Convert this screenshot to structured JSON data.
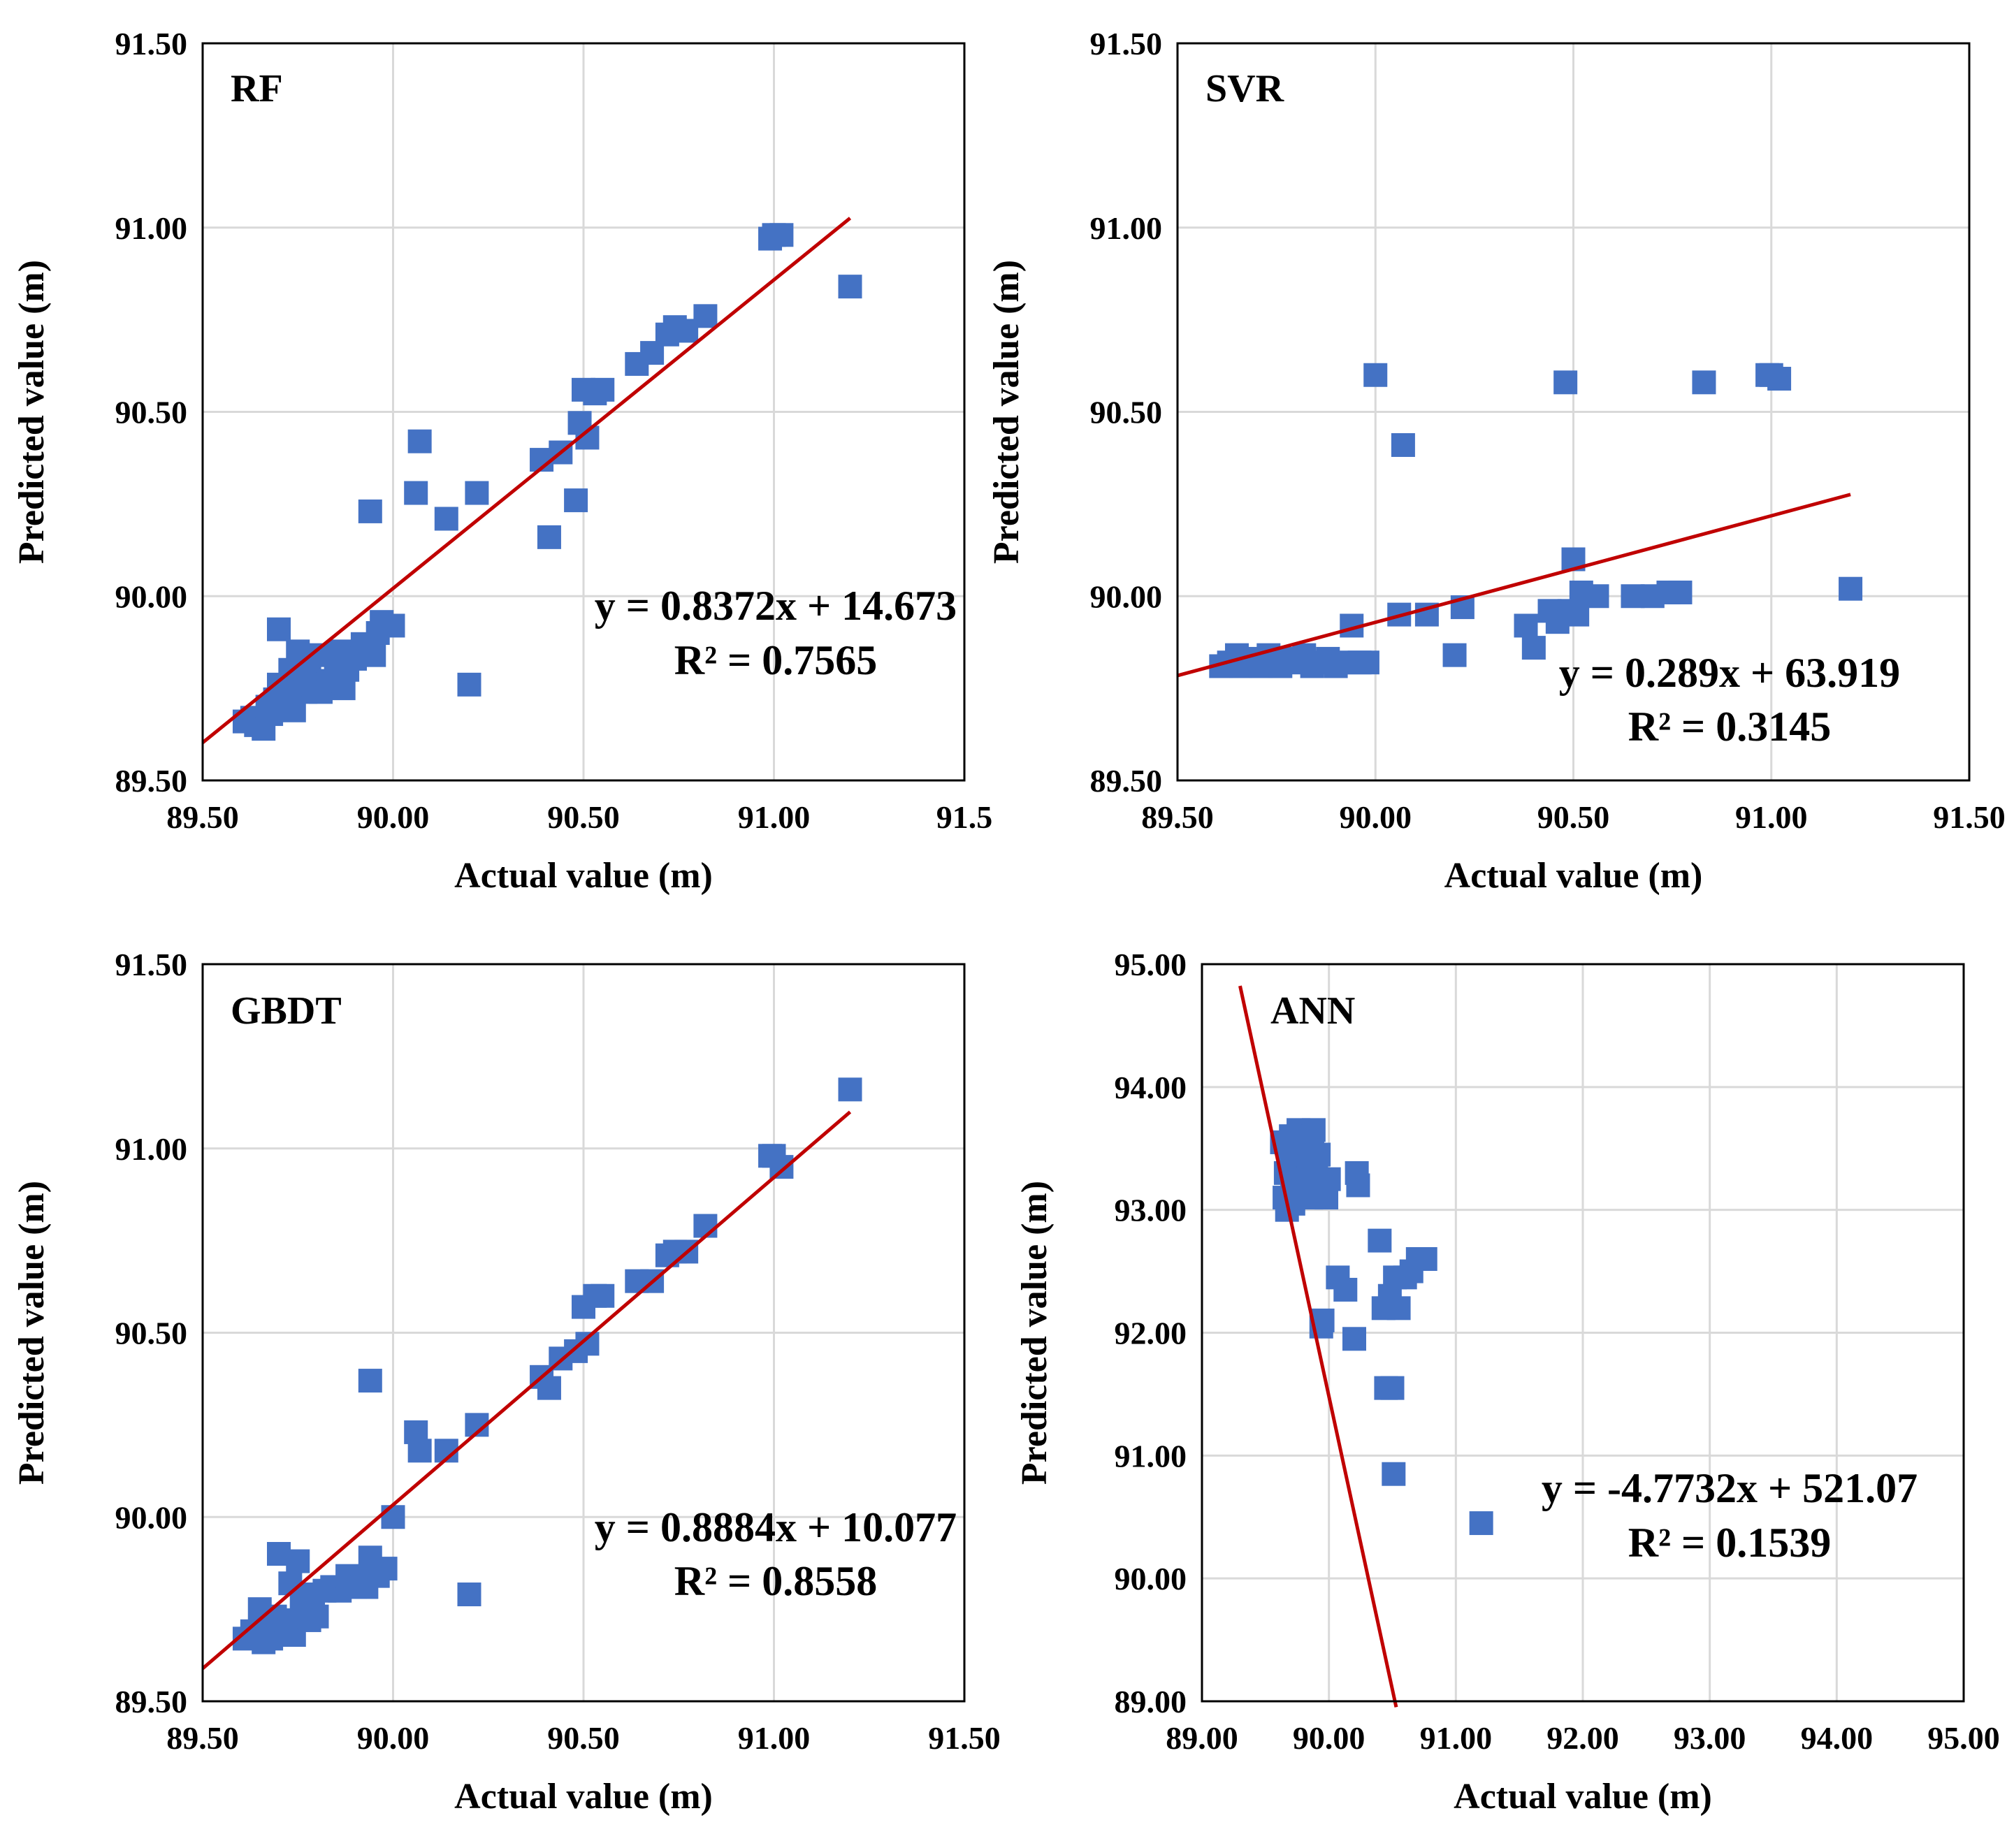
{
  "figure": {
    "colors": {
      "marker": "#4472C4",
      "trendline": "#C00000",
      "grid": "#D9D9D9",
      "frame": "#000000"
    }
  },
  "chart_data": [
    {
      "type": "scatter",
      "label": "RF",
      "xlabel": "Actual value (m)",
      "ylabel": "Predicted value (m)",
      "xlim": [
        89.5,
        91.5
      ],
      "ylim": [
        89.5,
        91.5
      ],
      "xticks": [
        "89.50",
        "90.00",
        "90.50",
        "91.00",
        "91.5"
      ],
      "yticks": [
        "89.50",
        "90.00",
        "90.50",
        "91.00",
        "91.50"
      ],
      "grid": true,
      "trendline": {
        "slope": 0.8372,
        "intercept": 14.673,
        "x_range": [
          89.5,
          91.2
        ]
      },
      "equation": "y = 0.8372x + 14.673",
      "r2": "R² = 0.7565",
      "points": [
        [
          89.61,
          89.66
        ],
        [
          89.63,
          89.67
        ],
        [
          89.64,
          89.65
        ],
        [
          89.66,
          89.64
        ],
        [
          89.67,
          89.7
        ],
        [
          89.68,
          89.68
        ],
        [
          89.69,
          89.72
        ],
        [
          89.7,
          89.91
        ],
        [
          89.7,
          89.76
        ],
        [
          89.71,
          89.74
        ],
        [
          89.72,
          89.71
        ],
        [
          89.73,
          89.8
        ],
        [
          89.74,
          89.69
        ],
        [
          89.75,
          89.85
        ],
        [
          89.76,
          89.78
        ],
        [
          89.77,
          89.74
        ],
        [
          89.78,
          89.81
        ],
        [
          89.79,
          89.76
        ],
        [
          89.8,
          89.84
        ],
        [
          89.81,
          89.74
        ],
        [
          89.83,
          89.77
        ],
        [
          89.85,
          89.8
        ],
        [
          89.86,
          89.85
        ],
        [
          89.87,
          89.75
        ],
        [
          89.88,
          89.8
        ],
        [
          89.9,
          89.83
        ],
        [
          89.92,
          89.87
        ],
        [
          89.93,
          89.85
        ],
        [
          89.94,
          90.23
        ],
        [
          89.95,
          89.84
        ],
        [
          89.96,
          89.9
        ],
        [
          89.97,
          89.93
        ],
        [
          90.0,
          89.92
        ],
        [
          90.06,
          90.28
        ],
        [
          90.07,
          90.42
        ],
        [
          90.14,
          90.21
        ],
        [
          90.2,
          89.76
        ],
        [
          90.22,
          90.28
        ],
        [
          90.39,
          90.37
        ],
        [
          90.41,
          90.16
        ],
        [
          90.44,
          90.39
        ],
        [
          90.48,
          90.26
        ],
        [
          90.49,
          90.47
        ],
        [
          90.5,
          90.56
        ],
        [
          90.51,
          90.43
        ],
        [
          90.53,
          90.55
        ],
        [
          90.55,
          90.56
        ],
        [
          90.64,
          90.63
        ],
        [
          90.68,
          90.66
        ],
        [
          90.72,
          90.71
        ],
        [
          90.74,
          90.73
        ],
        [
          90.77,
          90.72
        ],
        [
          90.82,
          90.76
        ],
        [
          90.99,
          90.97
        ],
        [
          91.0,
          90.98
        ],
        [
          91.02,
          90.98
        ],
        [
          91.2,
          90.84
        ]
      ]
    },
    {
      "type": "scatter",
      "label": "SVR",
      "xlabel": "Actual value (m)",
      "ylabel": "Predicted value (m)",
      "xlim": [
        89.5,
        91.5
      ],
      "ylim": [
        89.5,
        91.5
      ],
      "xticks": [
        "89.50",
        "90.00",
        "90.50",
        "91.00",
        "91.50"
      ],
      "yticks": [
        "89.50",
        "90.00",
        "90.50",
        "91.00",
        "91.50"
      ],
      "grid": true,
      "trendline": {
        "slope": 0.289,
        "intercept": 63.919,
        "x_range": [
          89.5,
          91.2
        ]
      },
      "equation": "y = 0.289x + 63.919",
      "r2": "R² = 0.3145",
      "points": [
        [
          89.61,
          89.81
        ],
        [
          89.63,
          89.82
        ],
        [
          89.65,
          89.84
        ],
        [
          89.66,
          89.81
        ],
        [
          89.68,
          89.82
        ],
        [
          89.7,
          89.83
        ],
        [
          89.71,
          89.81
        ],
        [
          89.73,
          89.84
        ],
        [
          89.74,
          89.82
        ],
        [
          89.76,
          89.81
        ],
        [
          89.78,
          89.83
        ],
        [
          89.8,
          89.82
        ],
        [
          89.82,
          89.84
        ],
        [
          89.84,
          89.81
        ],
        [
          89.86,
          89.82
        ],
        [
          89.88,
          89.83
        ],
        [
          89.9,
          89.81
        ],
        [
          89.92,
          89.82
        ],
        [
          89.94,
          89.92
        ],
        [
          89.96,
          89.82
        ],
        [
          89.98,
          89.82
        ],
        [
          90.0,
          90.6
        ],
        [
          90.06,
          89.95
        ],
        [
          90.07,
          90.41
        ],
        [
          90.13,
          89.95
        ],
        [
          90.2,
          89.84
        ],
        [
          90.22,
          89.97
        ],
        [
          90.38,
          89.92
        ],
        [
          90.4,
          89.86
        ],
        [
          90.44,
          89.96
        ],
        [
          90.46,
          89.93
        ],
        [
          90.48,
          90.58
        ],
        [
          90.49,
          89.96
        ],
        [
          90.5,
          90.1
        ],
        [
          90.51,
          89.95
        ],
        [
          90.52,
          90.01
        ],
        [
          90.56,
          90.0
        ],
        [
          90.65,
          90.0
        ],
        [
          90.7,
          90.0
        ],
        [
          90.74,
          90.01
        ],
        [
          90.77,
          90.01
        ],
        [
          90.83,
          90.58
        ],
        [
          90.99,
          90.6
        ],
        [
          91.0,
          90.6
        ],
        [
          91.02,
          90.59
        ],
        [
          91.2,
          90.02
        ]
      ]
    },
    {
      "type": "scatter",
      "label": "GBDT",
      "xlabel": "Actual value (m)",
      "ylabel": "Predicted value (m)",
      "xlim": [
        89.5,
        91.5
      ],
      "ylim": [
        89.5,
        91.5
      ],
      "xticks": [
        "89.50",
        "90.00",
        "90.50",
        "91.00",
        "91.50"
      ],
      "yticks": [
        "89.50",
        "90.00",
        "90.50",
        "91.00",
        "91.50"
      ],
      "grid": true,
      "trendline": {
        "slope": 0.8884,
        "intercept": 10.077,
        "x_range": [
          89.5,
          91.2
        ]
      },
      "equation": "y = 0.8884x + 10.077",
      "r2": "R² = 0.8558",
      "points": [
        [
          89.61,
          89.67
        ],
        [
          89.63,
          89.69
        ],
        [
          89.65,
          89.75
        ],
        [
          89.66,
          89.66
        ],
        [
          89.67,
          89.7
        ],
        [
          89.68,
          89.67
        ],
        [
          89.69,
          89.73
        ],
        [
          89.7,
          89.9
        ],
        [
          89.71,
          89.72
        ],
        [
          89.72,
          89.7
        ],
        [
          89.73,
          89.82
        ],
        [
          89.74,
          89.68
        ],
        [
          89.75,
          89.88
        ],
        [
          89.76,
          89.76
        ],
        [
          89.77,
          89.73
        ],
        [
          89.78,
          89.72
        ],
        [
          89.79,
          89.79
        ],
        [
          89.8,
          89.73
        ],
        [
          89.82,
          89.8
        ],
        [
          89.84,
          89.81
        ],
        [
          89.86,
          89.8
        ],
        [
          89.88,
          89.84
        ],
        [
          89.9,
          89.81
        ],
        [
          89.92,
          89.83
        ],
        [
          89.93,
          89.81
        ],
        [
          89.94,
          90.37
        ],
        [
          89.94,
          89.89
        ],
        [
          89.96,
          89.84
        ],
        [
          89.98,
          89.86
        ],
        [
          90.0,
          90.0
        ],
        [
          90.06,
          90.23
        ],
        [
          90.07,
          90.18
        ],
        [
          90.14,
          90.18
        ],
        [
          90.2,
          89.79
        ],
        [
          90.22,
          90.25
        ],
        [
          90.39,
          90.38
        ],
        [
          90.41,
          90.35
        ],
        [
          90.44,
          90.43
        ],
        [
          90.48,
          90.45
        ],
        [
          90.5,
          90.57
        ],
        [
          90.51,
          90.47
        ],
        [
          90.53,
          90.6
        ],
        [
          90.55,
          90.6
        ],
        [
          90.64,
          90.64
        ],
        [
          90.68,
          90.64
        ],
        [
          90.72,
          90.71
        ],
        [
          90.74,
          90.72
        ],
        [
          90.77,
          90.72
        ],
        [
          90.82,
          90.79
        ],
        [
          90.99,
          90.98
        ],
        [
          91.0,
          90.98
        ],
        [
          91.02,
          90.95
        ],
        [
          91.2,
          91.16
        ]
      ]
    },
    {
      "type": "scatter",
      "label": "ANN",
      "xlabel": "Actual value (m)",
      "ylabel": "Predicted value (m)",
      "xlim": [
        89.0,
        95.0
      ],
      "ylim": [
        89.0,
        95.0
      ],
      "xticks": [
        "89.00",
        "90.00",
        "91.00",
        "92.00",
        "93.00",
        "94.00",
        "95.00"
      ],
      "yticks": [
        "89.00",
        "90.00",
        "91.00",
        "92.00",
        "93.00",
        "94.00",
        "95.00"
      ],
      "grid": true,
      "trendline": {
        "slope": -4.7732,
        "intercept": 521.07,
        "x_range": [
          89.3,
          90.53
        ]
      },
      "equation": "y = -4.7732x + 521.07",
      "r2": "R² = 0.1539",
      "points": [
        [
          89.63,
          93.55
        ],
        [
          89.65,
          93.1
        ],
        [
          89.66,
          93.3
        ],
        [
          89.67,
          93.0
        ],
        [
          89.68,
          93.4
        ],
        [
          89.7,
          93.6
        ],
        [
          89.71,
          93.2
        ],
        [
          89.72,
          93.05
        ],
        [
          89.74,
          93.35
        ],
        [
          89.75,
          93.5
        ],
        [
          89.76,
          93.65
        ],
        [
          89.78,
          93.15
        ],
        [
          89.79,
          93.45
        ],
        [
          89.8,
          93.25
        ],
        [
          89.82,
          93.6
        ],
        [
          89.84,
          93.35
        ],
        [
          89.86,
          93.1
        ],
        [
          89.87,
          93.5
        ],
        [
          89.88,
          93.65
        ],
        [
          89.9,
          93.3
        ],
        [
          89.92,
          93.45
        ],
        [
          89.94,
          92.05
        ],
        [
          89.95,
          92.1
        ],
        [
          89.96,
          93.2
        ],
        [
          89.98,
          93.1
        ],
        [
          90.0,
          93.25
        ],
        [
          90.07,
          92.45
        ],
        [
          90.13,
          92.35
        ],
        [
          90.2,
          91.95
        ],
        [
          90.22,
          93.3
        ],
        [
          90.23,
          93.2
        ],
        [
          90.4,
          92.75
        ],
        [
          90.43,
          92.2
        ],
        [
          90.45,
          91.55
        ],
        [
          90.48,
          92.3
        ],
        [
          90.5,
          91.55
        ],
        [
          90.51,
          90.85
        ],
        [
          90.52,
          92.45
        ],
        [
          90.55,
          92.2
        ],
        [
          90.6,
          92.45
        ],
        [
          90.65,
          92.5
        ],
        [
          90.7,
          92.6
        ],
        [
          90.76,
          92.6
        ],
        [
          91.2,
          90.45
        ]
      ]
    }
  ]
}
